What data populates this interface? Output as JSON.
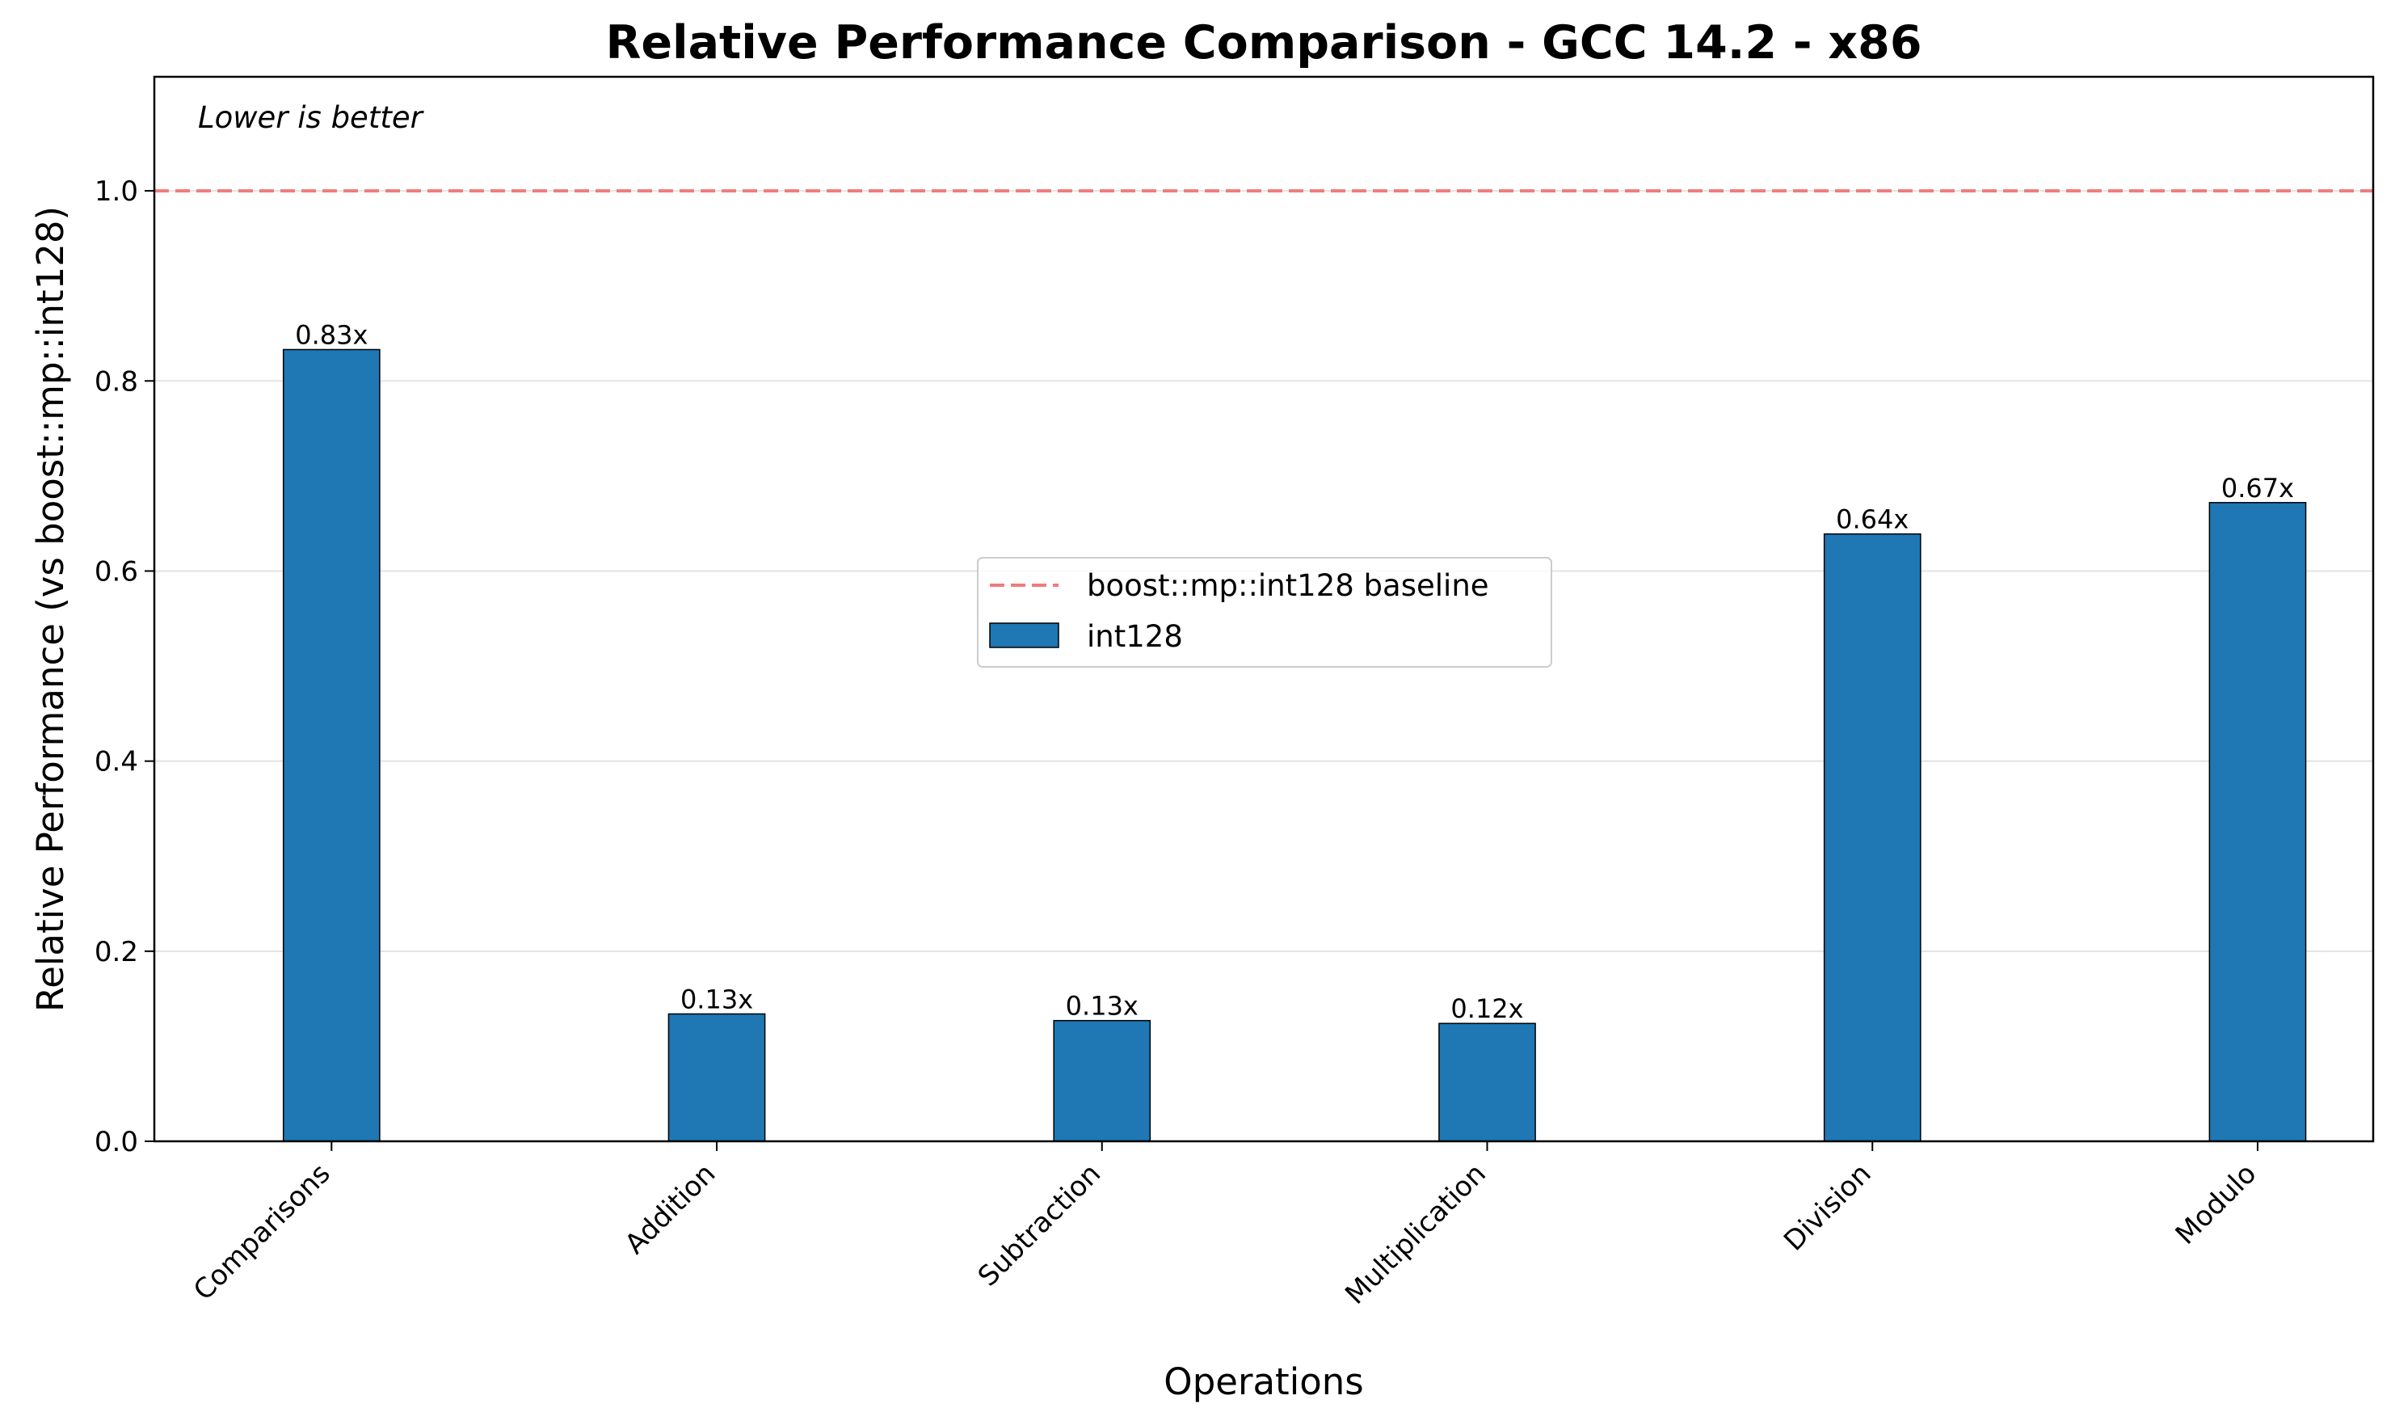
{
  "chart_data": {
    "type": "bar",
    "title": "Relative Performance Comparison - GCC 14.2 - x86",
    "xlabel": "Operations",
    "ylabel": "Relative Performance (vs boost::mp::int128)",
    "annotation": "Lower is better",
    "categories": [
      "Comparisons",
      "Addition",
      "Subtraction",
      "Multiplication",
      "Division",
      "Modulo"
    ],
    "series": [
      {
        "name": "int128",
        "values": [
          0.833,
          0.134,
          0.127,
          0.124,
          0.639,
          0.672
        ],
        "labels": [
          "0.83x",
          "0.13x",
          "0.13x",
          "0.12x",
          "0.64x",
          "0.67x"
        ],
        "color": "#1f77b4"
      }
    ],
    "baseline": {
      "name": "boost::mp::int128 baseline",
      "value": 1.0,
      "color": "#f07b7b",
      "style": "dashed"
    },
    "ylim": [
      0,
      1.12
    ],
    "yticks": [
      0.0,
      0.2,
      0.4,
      0.6,
      0.8,
      1.0
    ],
    "ytick_labels": [
      "0.0",
      "0.2",
      "0.4",
      "0.6",
      "0.8",
      "1.0"
    ],
    "grid": "y",
    "legend_position": "center"
  }
}
